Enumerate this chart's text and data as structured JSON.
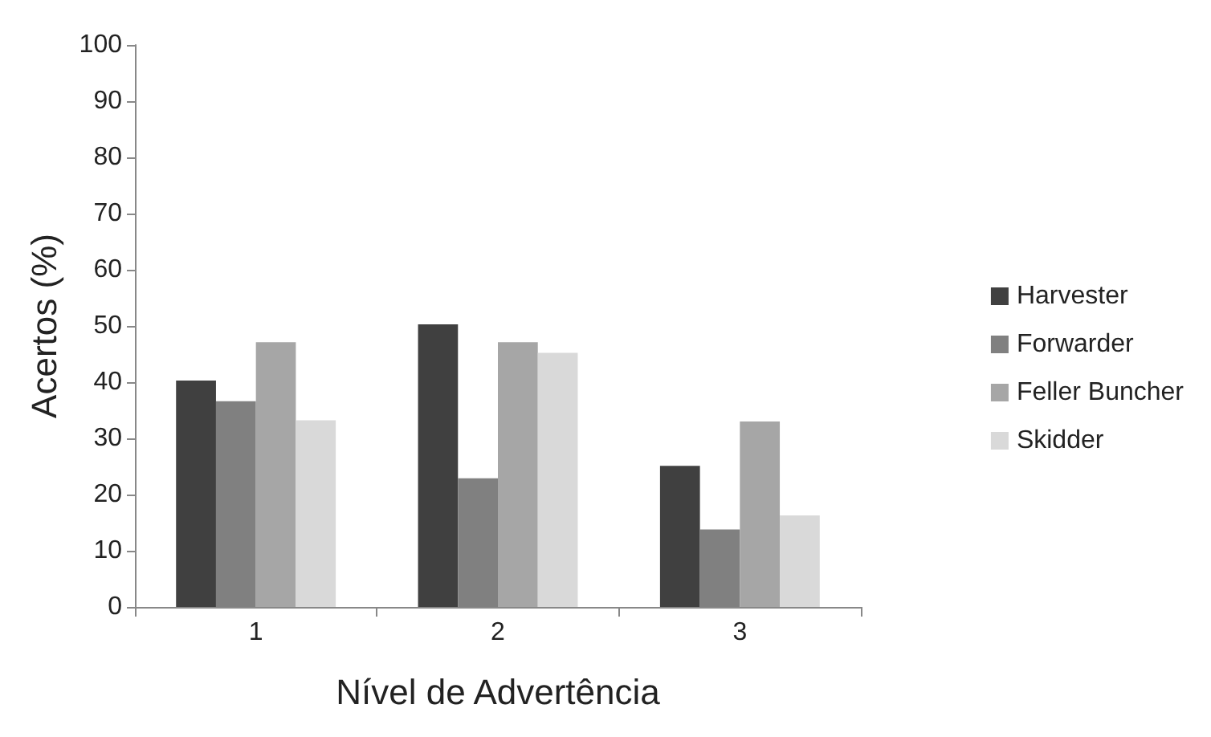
{
  "chart_data": {
    "type": "bar",
    "xlabel": "Nível de Advertência",
    "ylabel": "Acertos (%)",
    "categories": [
      "1",
      "2",
      "3"
    ],
    "series": [
      {
        "name": "Harvester",
        "color": "#404040",
        "values": [
          40.3,
          50.3,
          25.1
        ]
      },
      {
        "name": "Forwarder",
        "color": "#808080",
        "values": [
          36.6,
          22.9,
          13.8
        ]
      },
      {
        "name": "Feller Buncher",
        "color": "#a6a6a6",
        "values": [
          47.1,
          47.1,
          33
        ]
      },
      {
        "name": "Skidder",
        "color": "#d9d9d9",
        "values": [
          33.2,
          45.2,
          16.3
        ]
      }
    ],
    "ylim": [
      0,
      100
    ],
    "yticks": [
      0,
      10,
      20,
      30,
      40,
      50,
      60,
      70,
      80,
      90,
      100
    ],
    "grid": false,
    "legend": "right"
  }
}
